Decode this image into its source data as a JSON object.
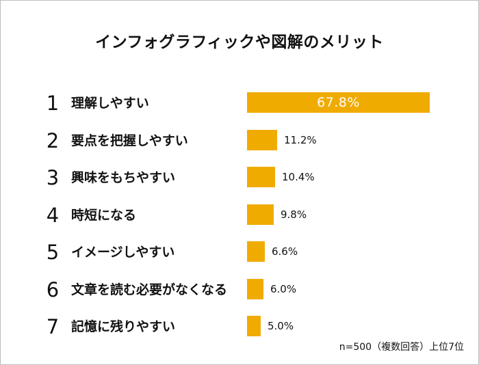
{
  "title": "インフォグラフィックや図解のメリット",
  "note": "n=500（複数回答）上位7位",
  "colors": {
    "bar": "#f0ab00",
    "inside_label": "#ffffff"
  },
  "chart_data": {
    "type": "bar",
    "orientation": "horizontal",
    "title": "インフォグラフィックや図解のメリット",
    "ranks": [
      "1",
      "2",
      "3",
      "4",
      "5",
      "6",
      "7"
    ],
    "categories": [
      "理解しやすい",
      "要点を把握しやすい",
      "興味をもちやすい",
      "時短になる",
      "イメージしやすい",
      "文章を読む必要がなくなる",
      "記憶に残りやすい"
    ],
    "values": [
      67.8,
      11.2,
      10.4,
      9.8,
      6.6,
      6.0,
      5.0
    ],
    "value_labels": [
      "67.8%",
      "11.2%",
      "10.4%",
      "9.8%",
      "6.6%",
      "6.0%",
      "5.0%"
    ],
    "unit": "%",
    "grid": false,
    "legend": "none"
  }
}
